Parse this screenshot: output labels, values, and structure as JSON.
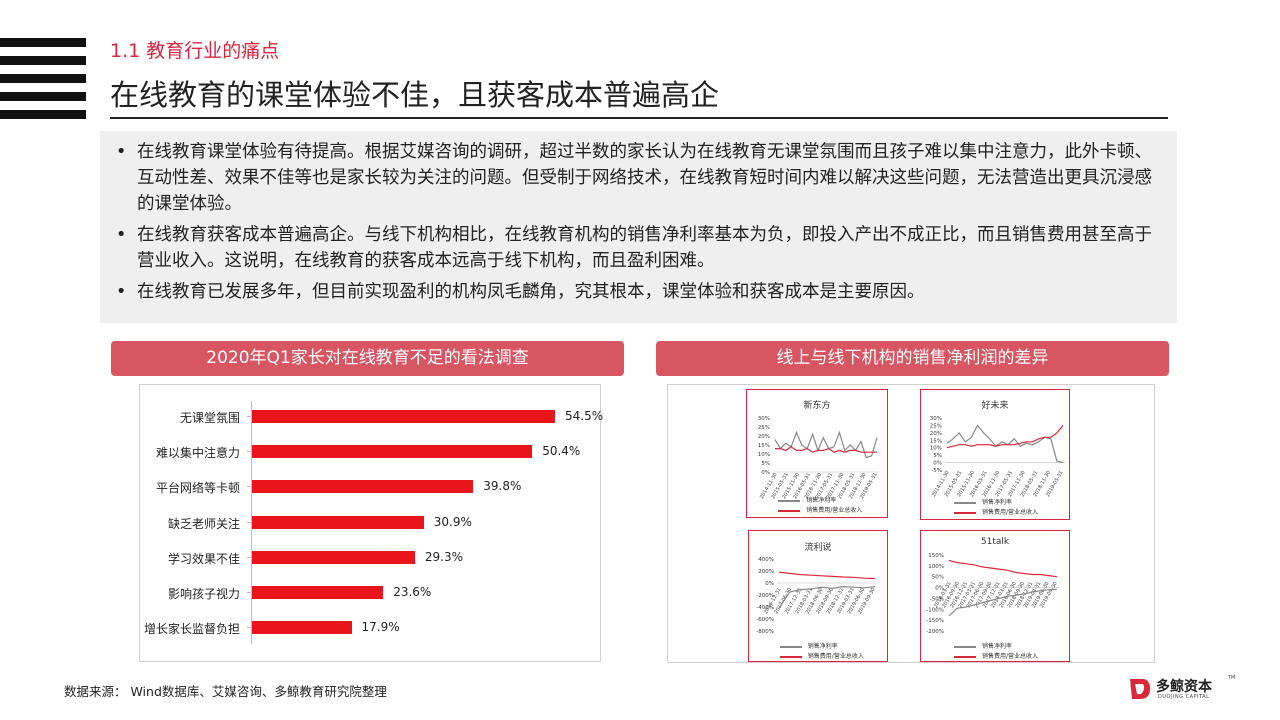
{
  "header": {
    "section": "1.1 教育行业的痛点",
    "title": "在线教育的课堂体验不佳，且获客成本普遍高企"
  },
  "bullets": [
    "在线教育课堂体验有待提高。根据艾媒咨询的调研，超过半数的家长认为在线教育无课堂氛围而且孩子难以集中注意力，此外卡顿、互动性差、效果不佳等也是家长较为关注的问题。但受制于网络技术，在线教育短时间内难以解决这些问题，无法营造出更具沉浸感的课堂体验。",
    "在线教育获客成本普遍高企。与线下机构相比，在线教育机构的销售净利率基本为负，即投入产出不成正比，而且销售费用甚至高于营业收入。这说明，在线教育的获客成本远高于线下机构，而且盈利困难。",
    "在线教育已发展多年，但目前实现盈利的机构凤毛麟角，究其根本，课堂体验和获客成本是主要原因。"
  ],
  "bullet_symbol": "•",
  "left_panel": {
    "title": "2020年Q1家长对在线教育不足的看法调查"
  },
  "right_panel": {
    "title": "线上与线下机构的销售净利润的差异"
  },
  "chart_data": [
    {
      "type": "bar",
      "orientation": "horizontal",
      "categories": [
        "无课堂氛围",
        "难以集中注意力",
        "平台网络等卡顿",
        "缺乏老师关注",
        "学习效果不佳",
        "影响孩子视力",
        "增长家长监督负担"
      ],
      "values": [
        54.5,
        50.4,
        39.8,
        30.9,
        29.3,
        23.6,
        17.9
      ],
      "value_labels": [
        "54.5%",
        "50.4%",
        "39.8%",
        "30.9%",
        "29.3%",
        "23.6%",
        "17.9%"
      ],
      "unit": "%",
      "bar_color": "#e8151b",
      "xlim": [
        0,
        60
      ]
    },
    {
      "type": "line",
      "title": "新东方",
      "y_ticks": [
        "30%",
        "25%",
        "20%",
        "15%",
        "10%",
        "5%",
        "0%"
      ],
      "ylim": [
        0,
        30
      ],
      "x_ticks": [
        "2014-11-30",
        "2015-05-31",
        "2015-11-30",
        "2016-05-31",
        "2016-11-30",
        "2017-05-31",
        "2017-11-30",
        "2018-05-31",
        "2018-11-30",
        "2019-05-31"
      ],
      "series": [
        {
          "name": "销售净利率",
          "color": "#888888",
          "values": [
            18,
            13,
            16,
            14,
            22,
            15,
            13,
            21,
            12,
            19,
            13,
            14,
            22,
            12,
            15,
            12,
            17,
            8,
            9,
            19
          ]
        },
        {
          "name": "销售费用/营业总收入",
          "color": "#d8283a",
          "values": [
            13,
            13,
            12,
            14,
            12,
            12,
            13,
            11,
            12,
            12,
            13,
            11,
            12,
            11,
            12,
            12,
            11,
            11,
            11,
            11
          ]
        }
      ]
    },
    {
      "type": "line",
      "title": "好未来",
      "y_ticks": [
        "30%",
        "25%",
        "20%",
        "15%",
        "10%",
        "5%",
        "0%",
        "-5%"
      ],
      "ylim": [
        -5,
        30
      ],
      "x_ticks": [
        "2014-11-30",
        "2015-05-31",
        "2015-11-30",
        "2016-05-31",
        "2016-11-30",
        "2017-05-31",
        "2017-11-30",
        "2018-05-31",
        "2018-11-30",
        "2019-05-31"
      ],
      "series": [
        {
          "name": "销售净利率",
          "color": "#888888",
          "values": [
            13,
            16,
            20,
            14,
            17,
            25,
            20,
            16,
            11,
            14,
            12,
            16,
            11,
            13,
            12,
            14,
            17,
            16,
            1,
            0
          ]
        },
        {
          "name": "销售费用/营业总收入",
          "color": "#d8283a",
          "values": [
            10,
            11,
            12,
            12,
            11,
            12,
            12,
            12,
            11,
            12,
            12,
            12,
            13,
            14,
            14,
            16,
            17,
            17,
            20,
            25
          ]
        }
      ]
    },
    {
      "type": "line",
      "title": "流利说",
      "y_ticks": [
        "400%",
        "200%",
        "0%",
        "-200%",
        "-400%",
        "-600%",
        "-800%"
      ],
      "ylim": [
        -800,
        400
      ],
      "x_ticks": [
        "2016-12-31",
        "2017-06-30",
        "2017-12-31",
        "2018-03-31",
        "2018-06-30",
        "2018-09-30",
        "2018-12-31",
        "2019-03-31",
        "2019-06-30",
        "2019-09-30"
      ],
      "series": [
        {
          "name": "销售净利率",
          "color": "#888888",
          "values": [
            -420,
            -150,
            -110,
            -100,
            -70,
            -90,
            -60,
            -70,
            -80,
            -60
          ]
        },
        {
          "name": "销售费用/营业总收入",
          "color": "#d8283a",
          "values": [
            180,
            160,
            140,
            130,
            120,
            110,
            100,
            95,
            80,
            75
          ]
        }
      ]
    },
    {
      "type": "line",
      "title": "51talk",
      "y_ticks": [
        "150%",
        "100%",
        "50%",
        "0%",
        "-50%",
        "-100%",
        "-150%",
        "-200%"
      ],
      "ylim": [
        -200,
        150
      ],
      "x_ticks": [
        "2016-03-31",
        "2016-09-30",
        "2016-12-31",
        "2017-03-31",
        "2017-06-30",
        "2017-09-30",
        "2017-12-31",
        "2018-03-31",
        "2018-06-30",
        "2018-09-30",
        "2018-12-31",
        "2019-03-31",
        "2019-06-30",
        "2019-09-30"
      ],
      "series": [
        {
          "name": "销售净利率",
          "color": "#888888",
          "values": [
            -130,
            -95,
            -90,
            -80,
            -70,
            -60,
            -50,
            -40,
            -35,
            -30,
            -20,
            -15,
            -10,
            -8
          ]
        },
        {
          "name": "销售费用/营业总收入",
          "color": "#d8283a",
          "values": [
            125,
            115,
            110,
            105,
            95,
            90,
            85,
            80,
            70,
            65,
            60,
            60,
            55,
            50
          ]
        }
      ]
    }
  ],
  "footer": {
    "source": "数据来源：  Wind数据库、艾媒咨询、多鲸教育研究院整理"
  },
  "logo": {
    "name": "多鲸资本",
    "sub": "DUOJING CAPITAL",
    "tm": "TM"
  }
}
